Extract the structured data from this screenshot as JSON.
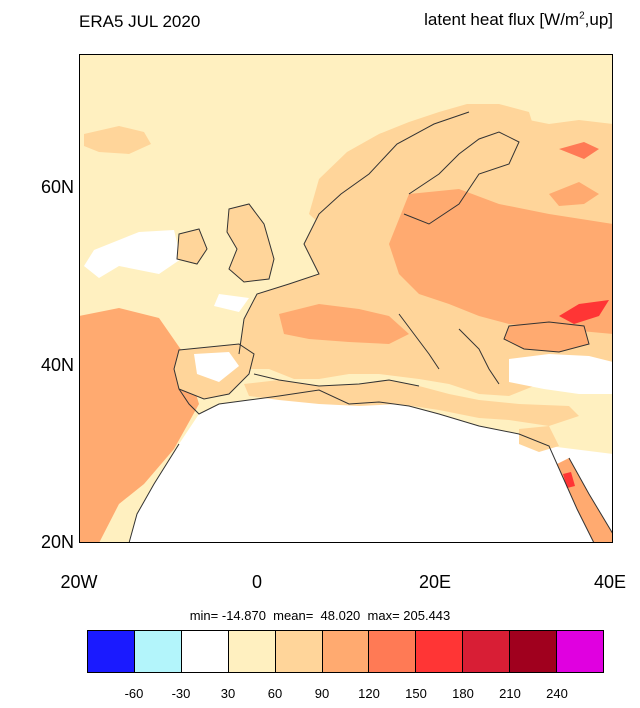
{
  "title_left": "ERA5 JUL 2020",
  "title_right": {
    "text": "latent heat flux [W/m",
    "sup": "2",
    "suffix": ",up]"
  },
  "lat_labels": [
    "60N",
    "40N",
    "20N"
  ],
  "lon_labels": [
    "20W",
    "0",
    "20E",
    "40E"
  ],
  "stats_text": "min= -14.870  mean=  48.020  max= 205.443",
  "colorbar": {
    "colors": [
      "#1a1aff",
      "#b3f5fb",
      "#ffffff",
      "#fff0c0",
      "#ffd59a",
      "#ffaa70",
      "#ff7a55",
      "#ff3535",
      "#d81e35",
      "#a0001e",
      "#e000e0"
    ],
    "labels": [
      "-60",
      "-30",
      "30",
      "60",
      "90",
      "120",
      "150",
      "180",
      "210",
      "240"
    ]
  },
  "map_colors": {
    "ocean_low": "#fff0c0",
    "land_mid": "#ffd59a",
    "land_high": "#ffaa70",
    "hot": "#ff7a55",
    "peak": "#ff3535",
    "desert": "#ffffff",
    "coast": "#333333"
  }
}
